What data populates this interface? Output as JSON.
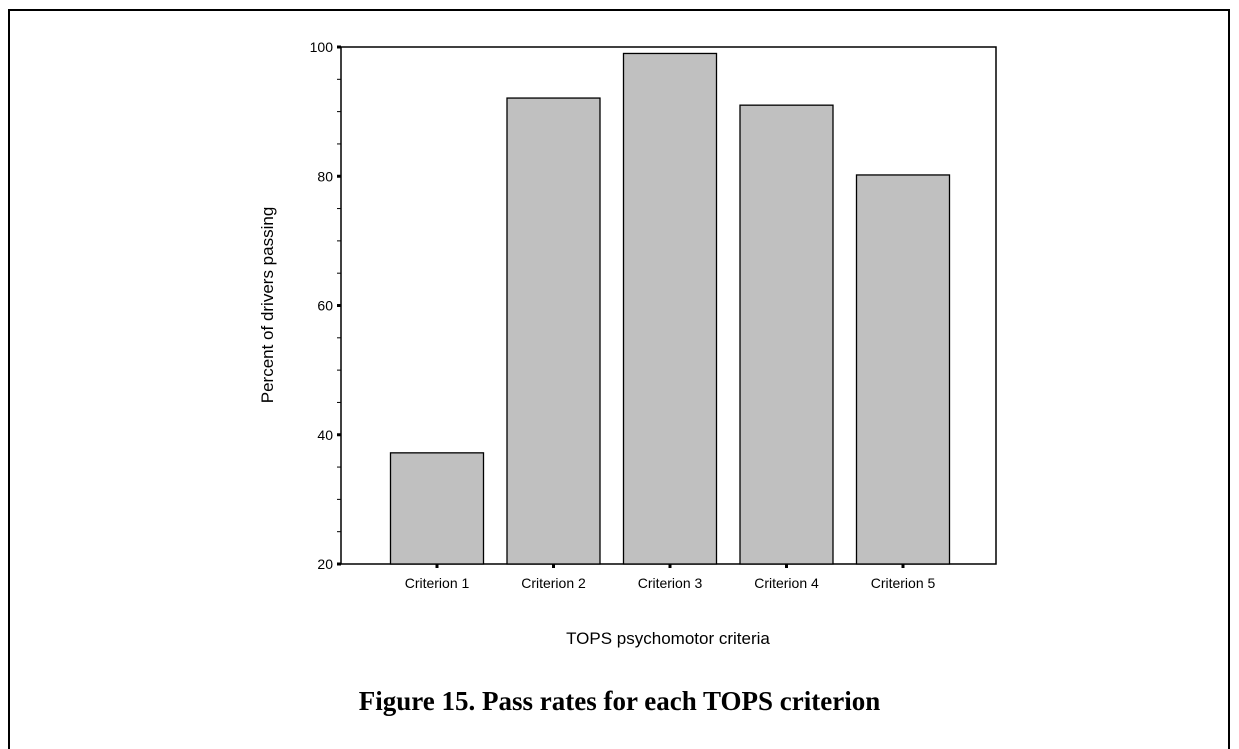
{
  "figure": {
    "caption": "Figure 15.  Pass rates for each TOPS criterion"
  },
  "chart_data": {
    "type": "bar",
    "categories": [
      "Criterion 1",
      "Criterion 2",
      "Criterion 3",
      "Criterion 4",
      "Criterion 5"
    ],
    "values": [
      37.2,
      92.1,
      99.0,
      91.0,
      80.2
    ],
    "xlabel": "TOPS psychomotor criteria",
    "ylabel": "Percent of drivers passing",
    "ylim": [
      20,
      100
    ],
    "yticks": [
      "20",
      "40",
      "60",
      "80",
      "100"
    ],
    "grid": false,
    "bar_color": "#c0c0c0",
    "legend": "none"
  }
}
